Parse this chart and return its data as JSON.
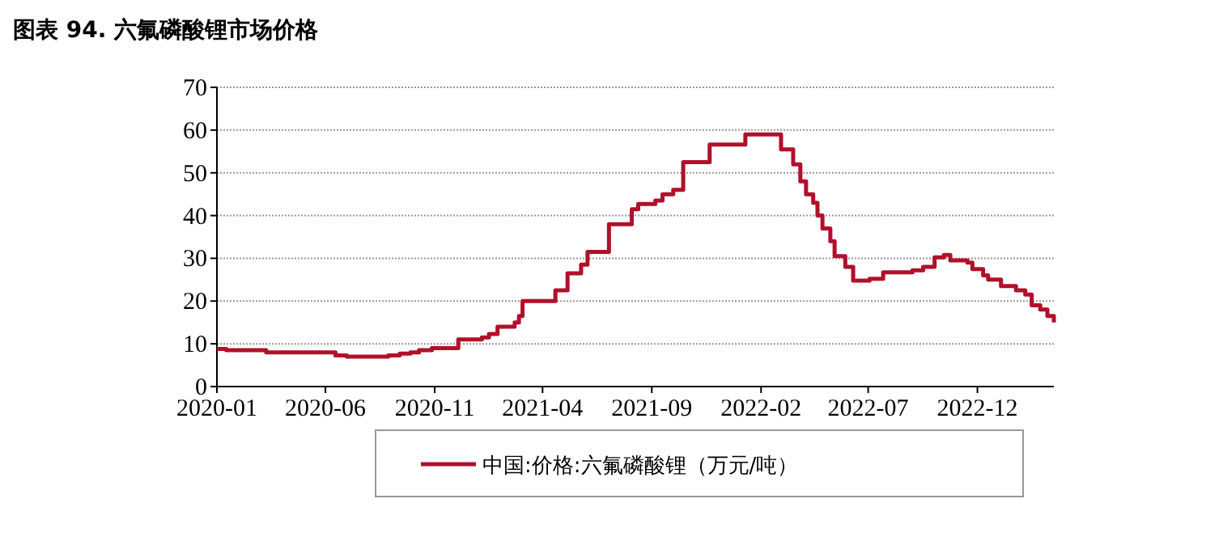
{
  "chart_data": {
    "type": "step",
    "title": "图表 94. 六氟磷酸锂市场价格",
    "x": [
      "2020-01-01",
      "2020-01-14",
      "2020-03-10",
      "2020-06-15",
      "2020-07-01",
      "2020-08-28",
      "2020-09-13",
      "2020-09-28",
      "2020-10-10",
      "2020-10-28",
      "2020-12-04",
      "2021-01-06",
      "2021-01-16",
      "2021-01-28",
      "2021-02-21",
      "2021-02-27",
      "2021-03-04",
      "2021-04-19",
      "2021-05-06",
      "2021-05-25",
      "2021-06-03",
      "2021-07-03",
      "2021-08-04",
      "2021-08-13",
      "2021-09-06",
      "2021-09-16",
      "2021-10-01",
      "2021-10-15",
      "2021-11-21",
      "2022-01-10",
      "2022-03-01",
      "2022-03-18",
      "2022-03-28",
      "2022-04-05",
      "2022-04-15",
      "2022-04-21",
      "2022-04-28",
      "2022-05-09",
      "2022-05-15",
      "2022-05-30",
      "2022-06-10",
      "2022-07-03",
      "2022-07-22",
      "2022-09-01",
      "2022-09-16",
      "2022-10-02",
      "2022-10-15",
      "2022-10-24",
      "2022-11-17",
      "2022-11-24",
      "2022-12-09",
      "2022-12-16",
      "2023-01-03",
      "2023-01-24",
      "2023-02-06",
      "2023-02-15",
      "2023-02-27",
      "2023-03-09",
      "2023-03-18"
    ],
    "series": [
      {
        "name": "中国:价格:六氟磷酸锂（万元/吨）",
        "color": "#b0102a",
        "values": [
          8.8,
          8.5,
          8.0,
          7.3,
          7.0,
          7.3,
          7.7,
          8.0,
          8.5,
          9.0,
          11.0,
          11.5,
          12.3,
          14.0,
          15.0,
          16.5,
          20.0,
          22.5,
          26.5,
          28.5,
          31.5,
          38.0,
          41.5,
          42.7,
          43.5,
          45.0,
          46.0,
          52.5,
          56.6,
          59.0,
          55.5,
          52.0,
          48.0,
          45.0,
          43.0,
          40.0,
          37.0,
          34.0,
          30.5,
          28.0,
          24.8,
          25.2,
          26.7,
          27.2,
          28.0,
          30.2,
          30.8,
          29.5,
          29.0,
          27.5,
          26.0,
          25.0,
          23.5,
          22.5,
          21.5,
          19.0,
          18.0,
          16.5,
          15.0
        ]
      }
    ],
    "xlim": [
      "2020-01-01",
      "2023-03-18"
    ],
    "xticks": [
      "2020-01",
      "2020-06",
      "2020-11",
      "2021-04",
      "2021-09",
      "2022-02",
      "2022-07",
      "2022-12"
    ],
    "ylim": [
      0,
      70
    ],
    "yticks": [
      0,
      10,
      20,
      30,
      40,
      50,
      60,
      70
    ],
    "grid": "y",
    "legend": "bottom"
  }
}
